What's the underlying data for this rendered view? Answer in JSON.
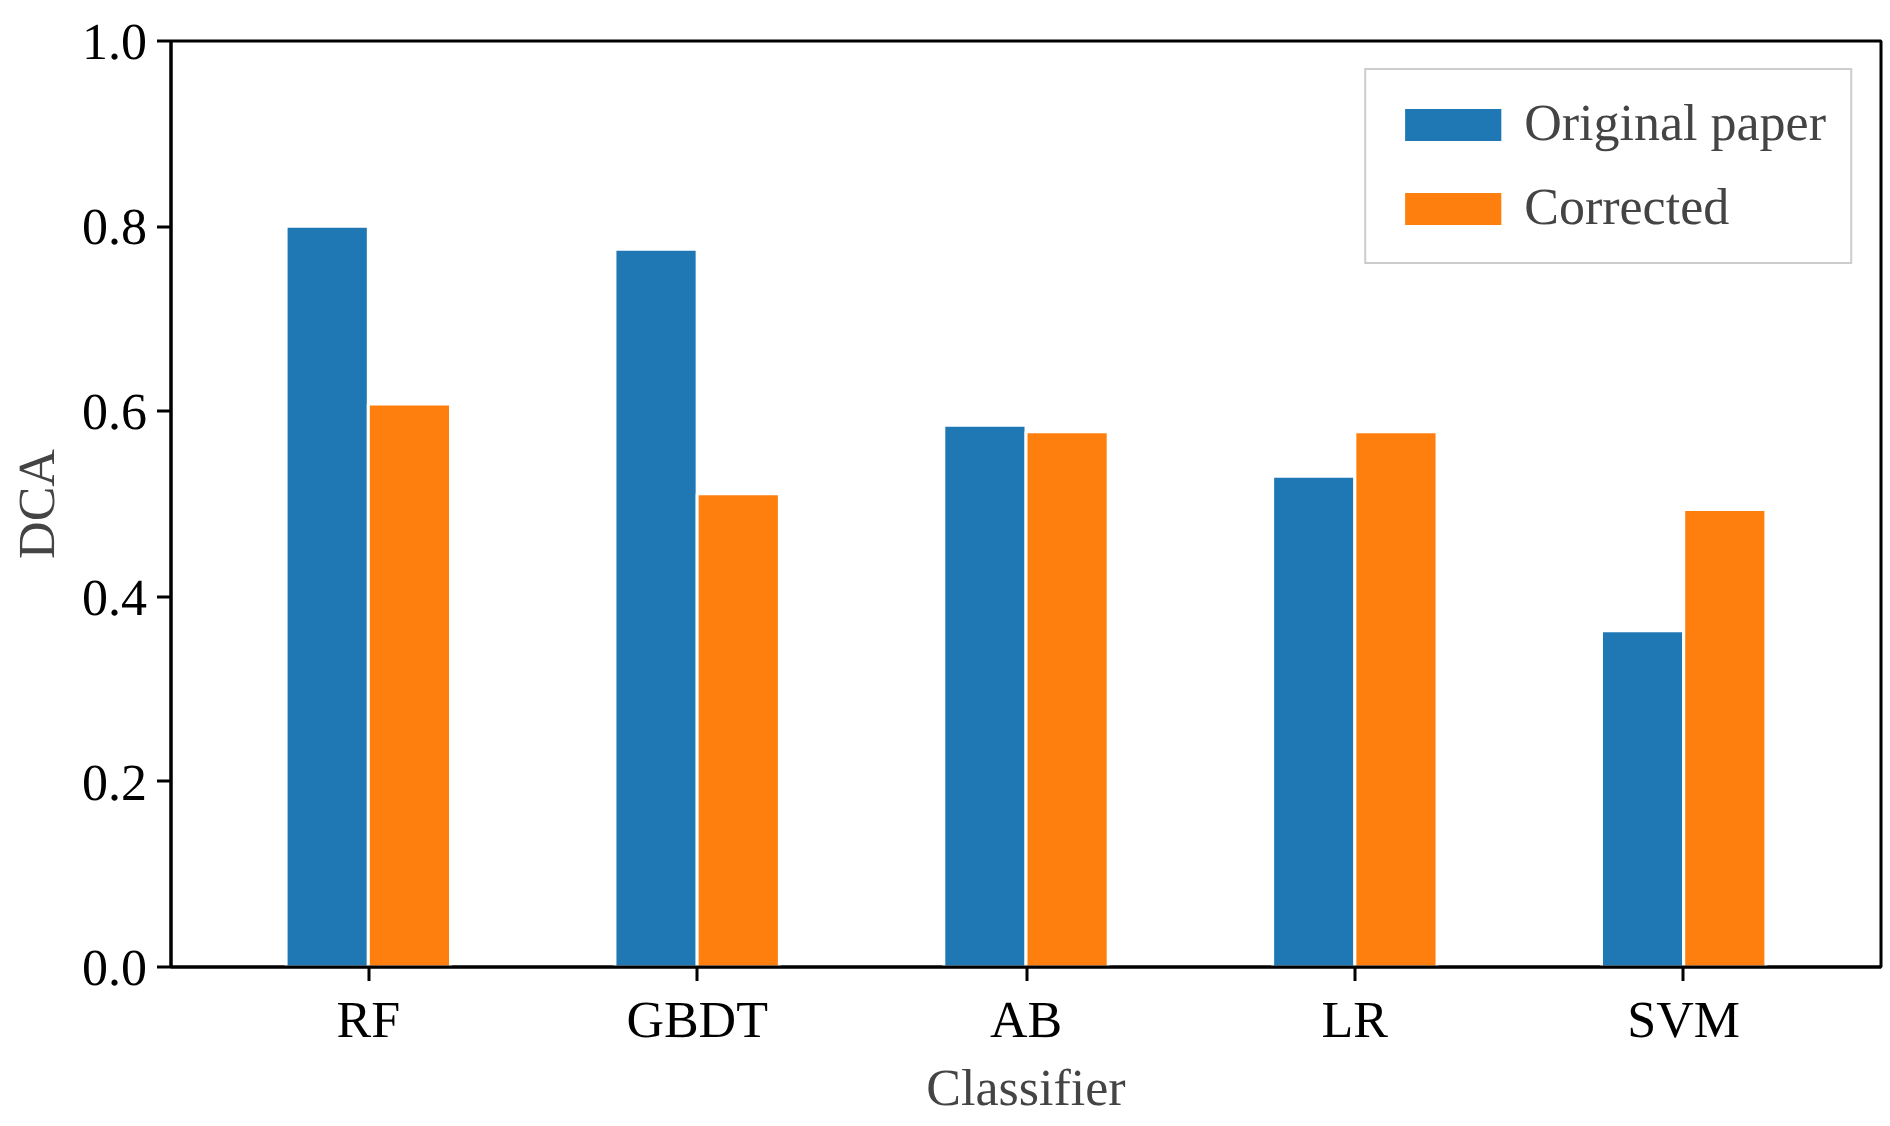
{
  "chart_data": {
    "type": "bar",
    "xlabel": "Classifier",
    "ylabel": "DCA",
    "categories": [
      "RF",
      "GBDT",
      "AB",
      "LR",
      "SVM"
    ],
    "series": [
      {
        "name": "Original paper",
        "color": "#1f77b4",
        "values": [
          0.8,
          0.775,
          0.585,
          0.53,
          0.363
        ]
      },
      {
        "name": "Corrected",
        "color": "#ff7f0e",
        "values": [
          0.608,
          0.511,
          0.578,
          0.578,
          0.494
        ]
      }
    ],
    "ylim": [
      0.0,
      1.0
    ],
    "yticks": [
      {
        "value": 0,
        "label": "0.0"
      },
      0.2,
      0.4,
      0.6,
      0.8,
      {
        "value": 1,
        "label": "1.0"
      }
    ],
    "legend": "top right",
    "grid": false
  }
}
